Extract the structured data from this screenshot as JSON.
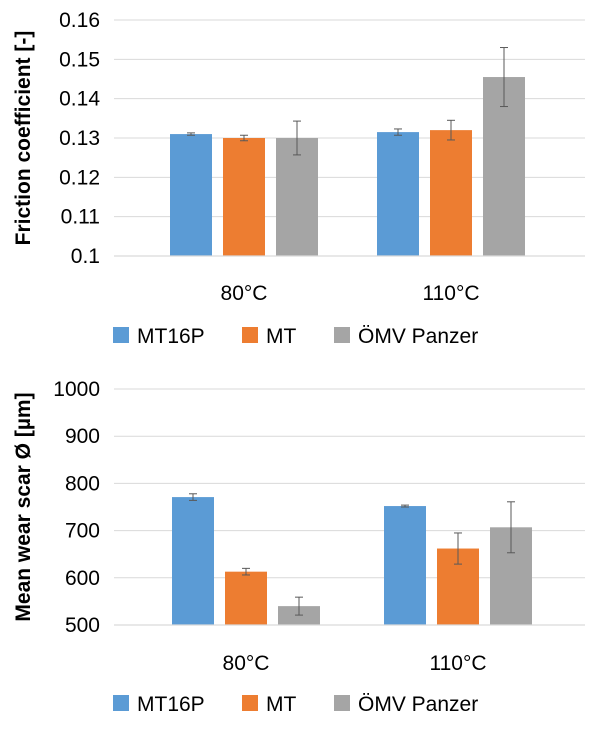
{
  "chart_data": [
    {
      "type": "bar",
      "title": "",
      "xlabel": "",
      "ylabel": "Friction coefficient [-]",
      "ylim": [
        0.1,
        0.16
      ],
      "yticks": [
        "0.1",
        "0.11",
        "0.12",
        "0.13",
        "0.14",
        "0.15",
        "0.16"
      ],
      "categories": [
        "80°C",
        "110°C"
      ],
      "grid": "horizontal",
      "legend_position": "bottom",
      "series": [
        {
          "name": "MT16P",
          "color": "#5b9bd5",
          "values": [
            0.131,
            0.1315
          ],
          "errors": [
            0.0003,
            0.0008
          ]
        },
        {
          "name": "MT",
          "color": "#ed7d31",
          "values": [
            0.13,
            0.132
          ],
          "errors": [
            0.0007,
            0.0025
          ]
        },
        {
          "name": "ÖMV Panzer",
          "color": "#a5a5a5",
          "values": [
            0.13,
            0.1455
          ],
          "errors": [
            0.0043,
            0.0075
          ]
        }
      ]
    },
    {
      "type": "bar",
      "title": "",
      "xlabel": "",
      "ylabel": "Mean wear scar Ø [µm]",
      "ylim": [
        500,
        1000
      ],
      "yticks": [
        "500",
        "600",
        "700",
        "800",
        "900",
        "1000"
      ],
      "categories": [
        "80°C",
        "110°C"
      ],
      "grid": "horizontal",
      "legend_position": "bottom",
      "series": [
        {
          "name": "MT16P",
          "color": "#5b9bd5",
          "values": [
            771,
            752
          ],
          "errors": [
            7,
            2
          ]
        },
        {
          "name": "MT",
          "color": "#ed7d31",
          "values": [
            613,
            662
          ],
          "errors": [
            7,
            33
          ]
        },
        {
          "name": "ÖMV Panzer",
          "color": "#a5a5a5",
          "values": [
            540,
            707
          ],
          "errors": [
            19,
            54
          ]
        }
      ]
    }
  ]
}
